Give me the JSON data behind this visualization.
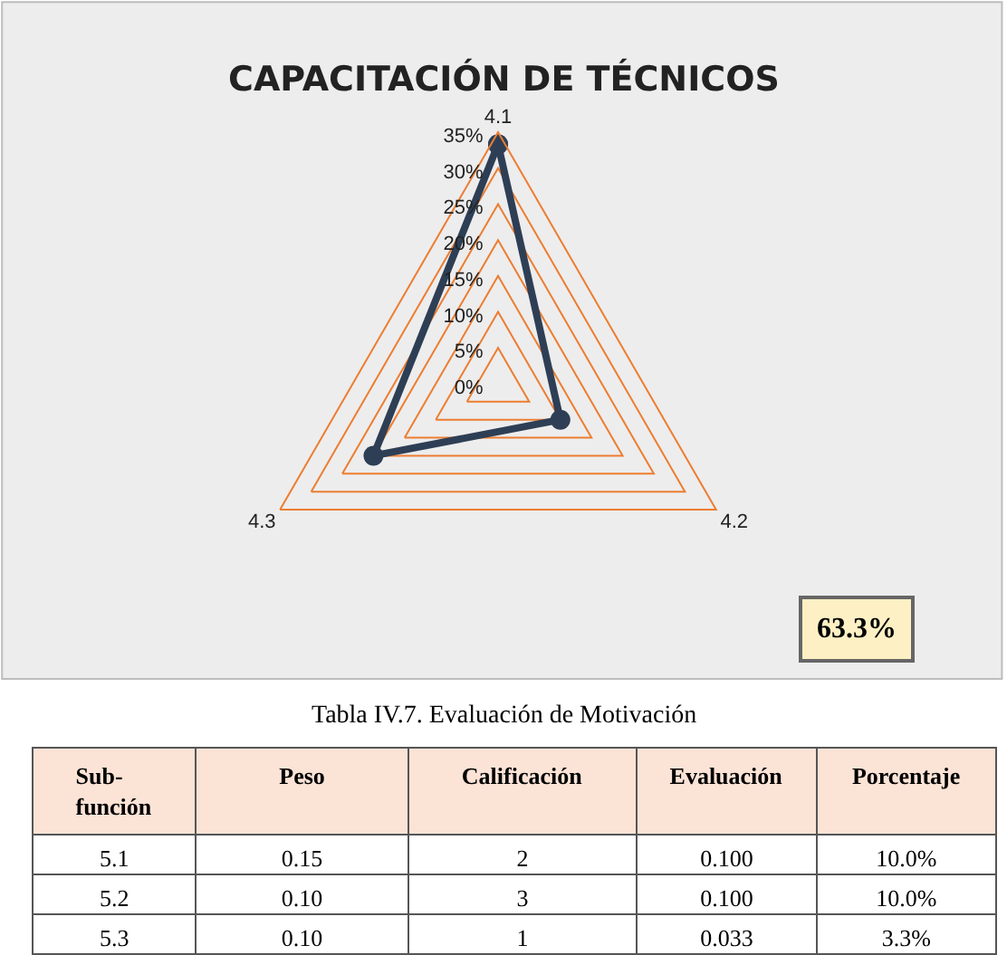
{
  "chart_data": [
    {
      "type": "radar",
      "title": "CAPACITACIÓN DE TÉCNICOS",
      "categories": [
        "4.1",
        "4.2",
        "4.3"
      ],
      "series": [
        {
          "color": "#2e3f55",
          "values": [
            33.3,
            10,
            20
          ]
        }
      ],
      "ylim": [
        0,
        35
      ],
      "yticks": [
        {
          "value": 0,
          "label": "0%"
        },
        {
          "value": 5,
          "label": "5%"
        },
        {
          "value": 10,
          "label": "10%"
        },
        {
          "value": 15,
          "label": "15%"
        },
        {
          "value": 20,
          "label": "20%"
        },
        {
          "value": 25,
          "label": "25%"
        },
        {
          "value": 30,
          "label": "30%"
        },
        {
          "value": 35,
          "label": "35%"
        }
      ],
      "grid": true,
      "marker": "circle",
      "annotations": [
        "63.3%"
      ]
    },
    {
      "type": "other",
      "title": "Tabla IV.7. Evaluación de Motivación",
      "categories": [
        "Sub-función",
        "Peso",
        "Calificación",
        "Evaluación",
        "Porcentaje"
      ],
      "cell_labels": [
        [
          "5.1",
          "0.15",
          "2",
          "0.100",
          "10.0%"
        ],
        [
          "5.2",
          "0.10",
          "3",
          "0.100",
          "10.0%"
        ],
        [
          "5.3",
          "0.10",
          "1",
          "0.033",
          "3.3%"
        ]
      ]
    }
  ]
}
